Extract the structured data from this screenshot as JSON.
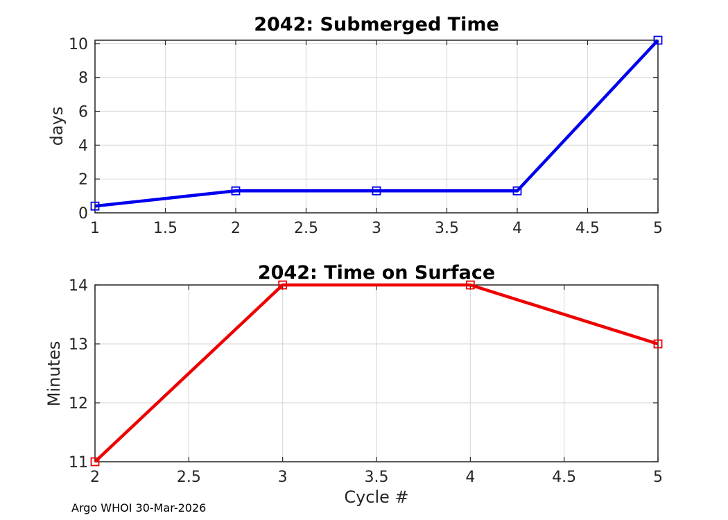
{
  "figure": {
    "background": "#ffffff",
    "footer": "Argo WHOI 30-Mar-2026"
  },
  "style": {
    "axis_color": "#262626",
    "grid_color": "#dcdcdc",
    "tick_label_color": "#262626",
    "title_color": "#000000"
  },
  "chart_data": [
    {
      "type": "line",
      "title": "2042: Submerged Time",
      "xlabel": "",
      "ylabel": "days",
      "x": [
        1,
        2,
        3,
        4,
        5
      ],
      "y": [
        0.4,
        1.3,
        1.3,
        1.3,
        10.2
      ],
      "xlim": [
        1,
        5
      ],
      "ylim": [
        0,
        10.2
      ],
      "xticks": [
        1,
        1.5,
        2,
        2.5,
        3,
        3.5,
        4,
        4.5,
        5
      ],
      "yticks": [
        0,
        2,
        4,
        6,
        8,
        10
      ],
      "grid": true,
      "legend": "none",
      "line_color": "#0000ee",
      "marker": "open-square"
    },
    {
      "type": "line",
      "title": "2042: Time on Surface",
      "xlabel": "Cycle #",
      "ylabel": "Minutes",
      "x": [
        2,
        3,
        4,
        5
      ],
      "y": [
        11,
        14,
        14,
        13
      ],
      "xlim": [
        2,
        5
      ],
      "ylim": [
        11,
        14
      ],
      "xticks": [
        2,
        2.5,
        3,
        3.5,
        4,
        4.5,
        5
      ],
      "yticks": [
        11,
        12,
        13,
        14
      ],
      "grid": true,
      "legend": "none",
      "line_color": "#ee0000",
      "marker": "open-square"
    }
  ]
}
